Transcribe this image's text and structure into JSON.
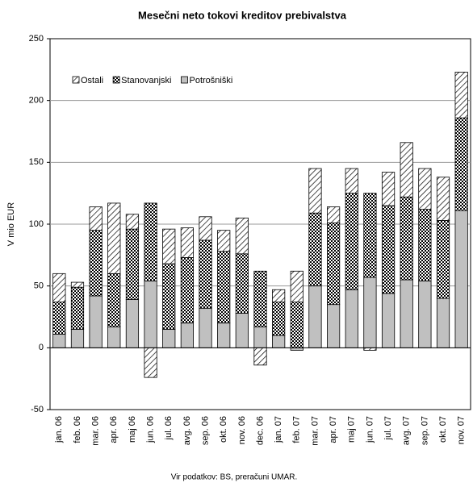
{
  "chart_data": {
    "type": "stacked_bar",
    "title": "Mesečni neto tokovi kreditov prebivalstva",
    "y_label": "V mio EUR",
    "source": "Vir podatkov: BS, preračuni UMAR.",
    "categories": [
      "jan. 06",
      "feb. 06",
      "mar. 06",
      "apr. 06",
      "maj 06",
      "jun. 06",
      "jul. 06",
      "avg. 06",
      "sep. 06",
      "okt. 06",
      "nov. 06",
      "dec. 06",
      "jan. 07",
      "feb. 07",
      "mar. 07",
      "apr. 07",
      "maj 07",
      "jun. 07",
      "jul. 07",
      "avg. 07",
      "sep. 07",
      "okt. 07",
      "nov. 07"
    ],
    "series": [
      {
        "name": "Potrošniški",
        "color": "#c0c0c0",
        "pattern": "solid",
        "values": [
          11,
          15,
          42,
          17,
          39,
          54,
          15,
          20,
          32,
          20,
          28,
          17,
          10,
          -2,
          50,
          35,
          47,
          57,
          44,
          55,
          54,
          40,
          111
        ]
      },
      {
        "name": "Stanovanjski",
        "color": "#000000",
        "pattern": "checker",
        "values": [
          26,
          34,
          53,
          43,
          57,
          63,
          53,
          53,
          55,
          58,
          48,
          45,
          27,
          37,
          59,
          66,
          78,
          68,
          71,
          67,
          58,
          63,
          75
        ]
      },
      {
        "name": "Ostali",
        "color": "#000000",
        "pattern": "hatch",
        "values": [
          23,
          4,
          19,
          57,
          12,
          -24,
          28,
          24,
          19,
          17,
          29,
          -14,
          10,
          25,
          36,
          13,
          20,
          -2,
          27,
          44,
          33,
          35,
          37
        ]
      }
    ],
    "legend_order": [
      "Ostali",
      "Stanovanjski",
      "Potrošniški"
    ],
    "ylim": [
      -50,
      250
    ],
    "yticks": [
      -50,
      0,
      50,
      100,
      150,
      200,
      250
    ],
    "grid": true
  }
}
